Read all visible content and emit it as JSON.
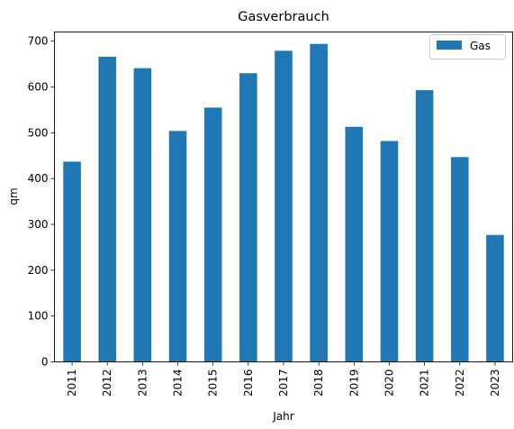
{
  "chart_data": {
    "type": "bar",
    "title": "Gasverbrauch",
    "xlabel": "Jahr",
    "ylabel": "qm",
    "categories": [
      "2011",
      "2012",
      "2013",
      "2014",
      "2015",
      "2016",
      "2017",
      "2018",
      "2019",
      "2020",
      "2021",
      "2022",
      "2023"
    ],
    "series": [
      {
        "name": "Gas",
        "values": [
          437,
          666,
          641,
          504,
          555,
          630,
          679,
          694,
          513,
          482,
          593,
          447,
          277
        ],
        "color": "#1f77b4"
      }
    ],
    "ylim": [
      0,
      720
    ],
    "yticks": [
      0,
      100,
      200,
      300,
      400,
      500,
      600,
      700
    ],
    "grid": false,
    "legend": "top-right"
  }
}
